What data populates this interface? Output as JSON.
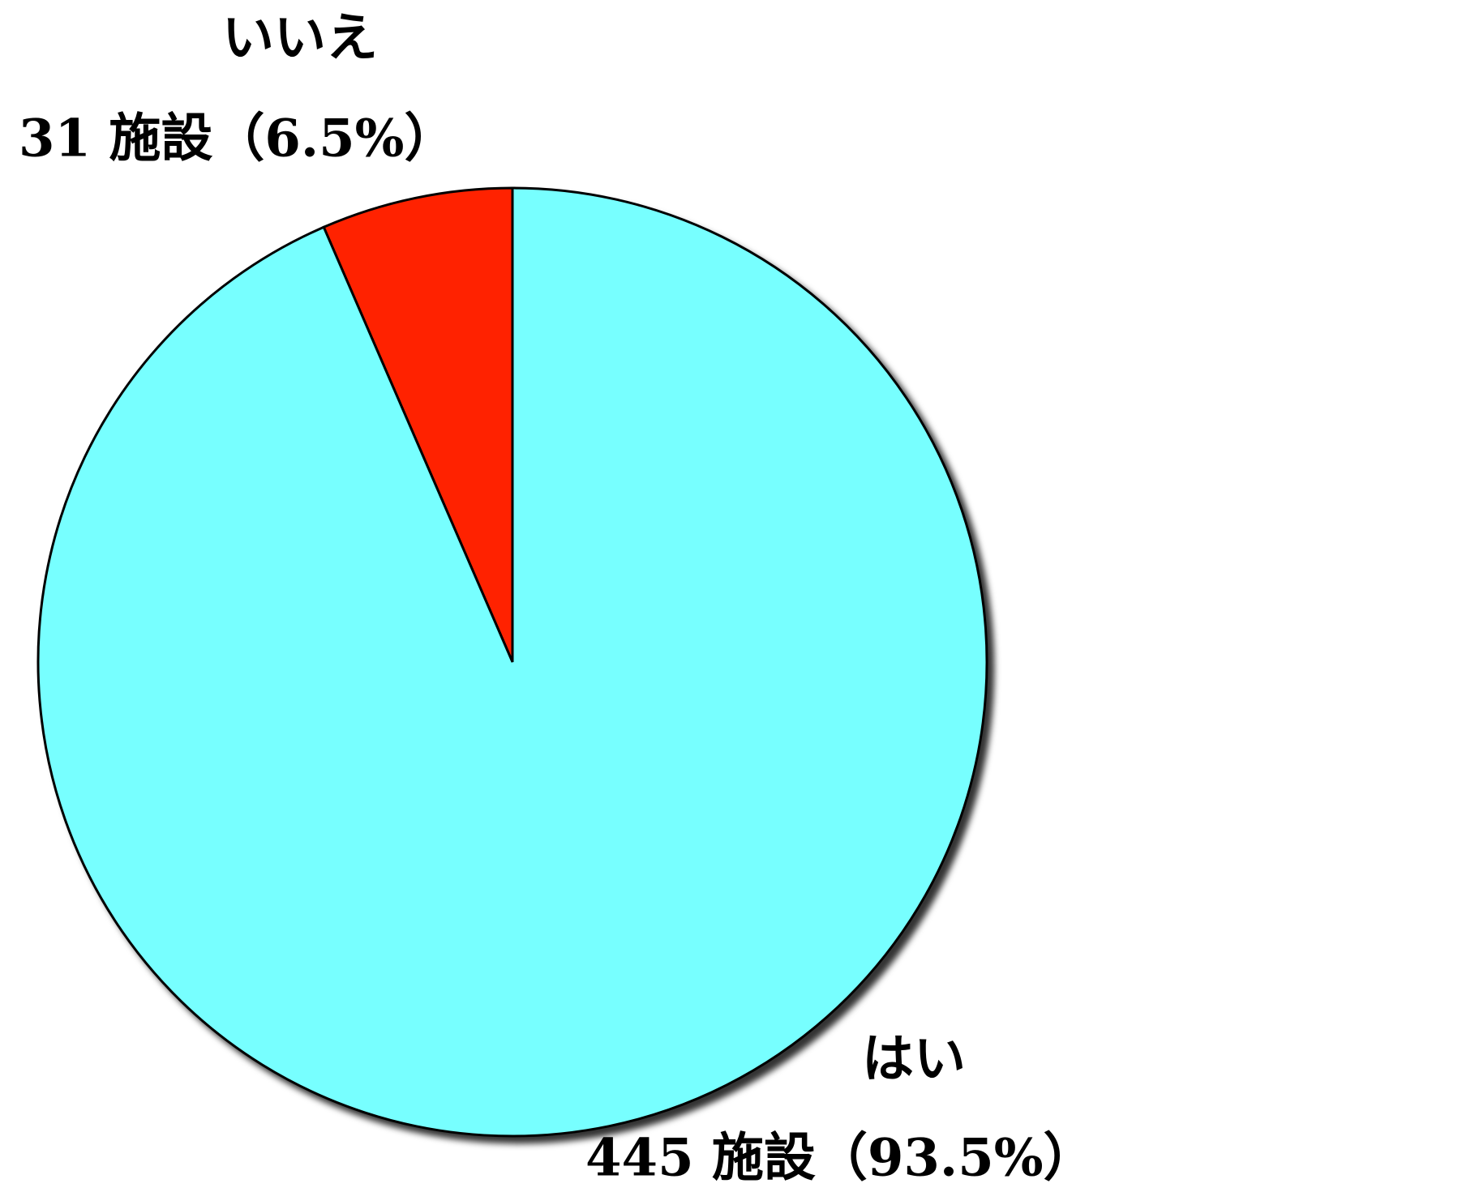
{
  "chart_data": {
    "type": "pie",
    "categories": [
      "いいえ",
      "はい"
    ],
    "values": [
      31,
      445
    ],
    "value_labels": [
      "31 施設（6.5%）",
      "445 施設（93.5%）"
    ],
    "colors": [
      "#ff2200",
      "#77ffff"
    ]
  }
}
